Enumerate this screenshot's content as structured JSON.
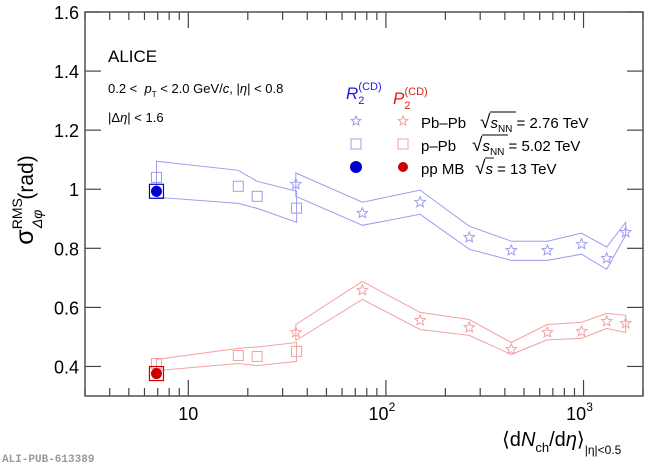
{
  "chart_data": {
    "type": "scatter",
    "title": "",
    "experiment": "ALICE",
    "annotations": [
      "0.2 < p_T < 2.0 GeV/c, |η| < 0.8",
      "|Δη| < 1.6"
    ],
    "annotation_parts": {
      "pt_pre": "0.2 <  ",
      "pt_p": "p",
      "pt_sub": "T",
      "pt_mid": " < 2.0 GeV/",
      "pt_c": "c",
      "pt_post": ", |",
      "eta": "η",
      "pt_end": "| < 0.8",
      "deta_pre": "|Δ",
      "deta_eta": "η",
      "deta_post": "| < 1.6"
    },
    "ylabel": "σ RMS Δφ (rad)",
    "ylabel_parts": {
      "sigma": "σ",
      "sup": "RMS",
      "sub": "Δφ",
      "unit": "(rad)"
    },
    "xlabel": "⟨dN_ch/dη⟩ |η|<0.5",
    "xlabel_parts": {
      "open": "⟨d",
      "N": "N",
      "ch": "ch",
      "mid": "/d",
      "eta": "η",
      "close": "⟩",
      "sub": "|η|<0.5"
    },
    "xscale": "log",
    "xlim": [
      3,
      2000
    ],
    "ylim": [
      0.3,
      1.6
    ],
    "yticks": [
      0.4,
      0.6,
      0.8,
      1,
      1.2,
      1.4,
      1.6
    ],
    "ytick_labels": [
      "0.4",
      "0.6",
      "0.8",
      "1",
      "1.2",
      "1.4",
      "1.6"
    ],
    "xticks": [
      10,
      100,
      1000
    ],
    "xtick_labels": [
      {
        "base": "10",
        "exp": ""
      },
      {
        "base": "10",
        "exp": "2"
      },
      {
        "base": "10",
        "exp": "3"
      }
    ],
    "grid": false,
    "legend": {
      "placement": "top-right",
      "col_headers": [
        {
          "base": "R",
          "sub": "2",
          "sup": "(CD)",
          "color": "#1a1ae6"
        },
        {
          "base": "P",
          "sub": "2",
          "sup": "(CD)",
          "color": "#e61a1a"
        }
      ],
      "rows": [
        {
          "system": "Pb–Pb",
          "energy_sym": "s",
          "energy_sub": "NN",
          "energy": " = 2.76 TeV",
          "marker": "star"
        },
        {
          "system": "p–Pb",
          "energy_sym": "s",
          "energy_sub": "NN",
          "energy": " = 5.02 TeV",
          "marker": "open-square"
        },
        {
          "system": "pp MB",
          "energy_sym": "s",
          "energy_sub": "",
          "energy": " = 13 TeV",
          "marker": "filled-circle"
        }
      ]
    },
    "colors": {
      "R2_light": "#9c9cf0",
      "R2_dark": "#0000cc",
      "P2_light": "#f5a0a0",
      "P2_dark": "#cc0000",
      "axis": "#444444"
    },
    "series": [
      {
        "name": "R2(CD) Pb–Pb 2.76 TeV",
        "observable": "R2",
        "color_key": "R2_light",
        "marker": "star",
        "x": [
          35,
          76,
          149,
          264,
          431,
          656,
          977,
          1310,
          1634
        ],
        "y": [
          1.017,
          0.919,
          0.956,
          0.837,
          0.793,
          0.793,
          0.814,
          0.766,
          0.854
        ],
        "band_upper": [
          1.055,
          0.956,
          0.997,
          0.875,
          0.824,
          0.824,
          0.851,
          0.804,
          0.888
        ],
        "band_lower": [
          0.976,
          0.878,
          0.915,
          0.797,
          0.759,
          0.759,
          0.78,
          0.729,
          0.844
        ]
      },
      {
        "name": "R2(CD) p–Pb 5.02 TeV",
        "observable": "R2",
        "color_key": "R2_light",
        "marker": "open-square",
        "x": [
          6.9,
          17.9,
          22.3,
          35.3
        ],
        "y": [
          1.04,
          1.01,
          0.976,
          0.936
        ],
        "band_upper": [
          1.095,
          1.064,
          1.027,
          0.993
        ],
        "band_lower": [
          0.973,
          0.952,
          0.935,
          0.888
        ]
      },
      {
        "name": "R2(CD) pp MB 13 TeV",
        "observable": "R2",
        "color_key": "R2_dark",
        "marker": "filled-circle",
        "x": [
          6.9
        ],
        "y": [
          0.993
        ],
        "box_halfheight": 0.022
      },
      {
        "name": "P2(CD) Pb–Pb 2.76 TeV",
        "observable": "P2",
        "color_key": "P2_light",
        "marker": "star",
        "x": [
          35,
          76,
          149,
          264,
          431,
          656,
          977,
          1310,
          1634
        ],
        "y": [
          0.515,
          0.658,
          0.556,
          0.532,
          0.458,
          0.515,
          0.519,
          0.553,
          0.546
        ],
        "band_upper": [
          0.542,
          0.688,
          0.583,
          0.559,
          0.481,
          0.542,
          0.549,
          0.58,
          0.573
        ],
        "band_lower": [
          0.488,
          0.627,
          0.525,
          0.505,
          0.441,
          0.49,
          0.495,
          0.529,
          0.515
        ]
      },
      {
        "name": "P2(CD) p–Pb 5.02 TeV",
        "observable": "P2",
        "color_key": "P2_light",
        "marker": "open-square",
        "x": [
          6.9,
          17.9,
          22.3,
          35.3
        ],
        "y": [
          0.41,
          0.437,
          0.434,
          0.451
        ],
        "band_upper": [
          0.424,
          0.461,
          0.466,
          0.481
        ],
        "band_lower": [
          0.386,
          0.41,
          0.403,
          0.417
        ]
      },
      {
        "name": "P2(CD) pp MB 13 TeV",
        "observable": "P2",
        "color_key": "P2_dark",
        "marker": "filled-circle",
        "x": [
          6.9
        ],
        "y": [
          0.376
        ],
        "box_halfheight": 0.02
      }
    ]
  },
  "footer": {
    "pub_id": "ALI-PUB-613389"
  }
}
